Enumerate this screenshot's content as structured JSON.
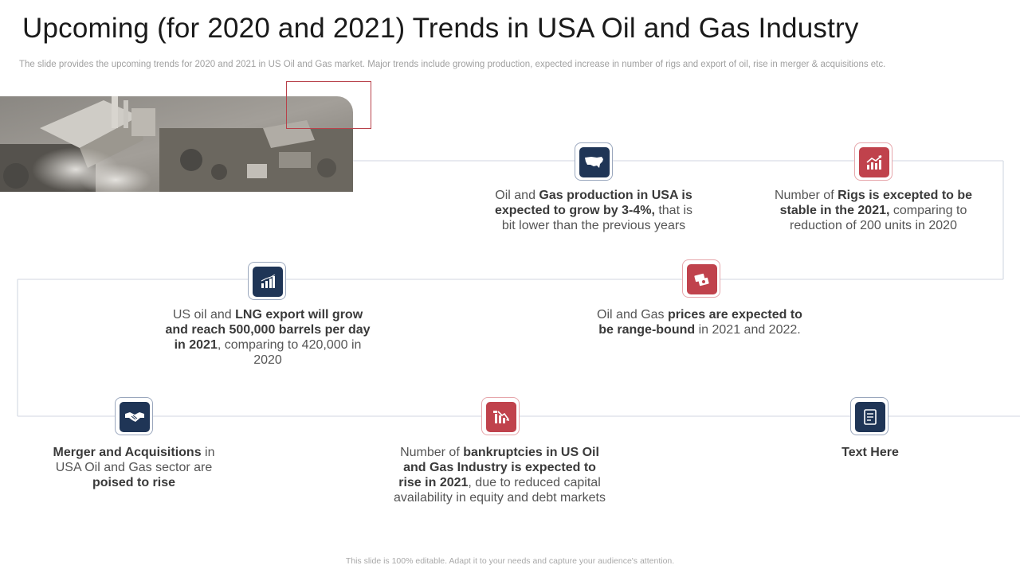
{
  "title": "Upcoming (for 2020 and 2021) Trends in USA Oil and Gas Industry",
  "subtitle": "The slide provides the upcoming trends for 2020 and 2021 in US Oil and Gas market. Major trends include growing production, expected increase in number of rigs and export of oil, rise in merger & acquisitions etc.",
  "footer": "This slide is 100% editable. Adapt it to your needs and capture your audience's attention.",
  "colors": {
    "navy": "#1f3556",
    "red": "#c0424c",
    "line": "#d9dee6"
  },
  "trends": [
    {
      "id": "production",
      "icon": "usa-map-icon",
      "style": "navy",
      "parts": [
        [
          "Oil and ",
          false
        ],
        [
          "Gas production in USA is expected to grow by 3-4%,",
          true
        ],
        [
          " that is bit lower than the previous years",
          false
        ]
      ]
    },
    {
      "id": "rigs",
      "icon": "growth-chart-icon",
      "style": "red",
      "parts": [
        [
          "Number of ",
          false
        ],
        [
          "Rigs is excepted to be stable in the 2021,",
          true
        ],
        [
          " comparing to reduction of 200 units in 2020",
          false
        ]
      ]
    },
    {
      "id": "export",
      "icon": "bar-chart-icon",
      "style": "navy",
      "parts": [
        [
          "US oil and ",
          false
        ],
        [
          "LNG export will grow and reach 500,000 barrels per day in 2021",
          true
        ],
        [
          ", comparing to 420,000 in 2020",
          false
        ]
      ]
    },
    {
      "id": "prices",
      "icon": "money-icon",
      "style": "red",
      "parts": [
        [
          "Oil and Gas ",
          false
        ],
        [
          "prices are expected to be range-bound",
          true
        ],
        [
          " in 2021 and 2022.",
          false
        ]
      ]
    },
    {
      "id": "merger",
      "icon": "handshake-icon",
      "style": "navy",
      "parts": [
        [
          "Merger and Acquisitions",
          true
        ],
        [
          " in USA Oil and Gas sector are ",
          false
        ],
        [
          "poised to rise",
          true
        ]
      ]
    },
    {
      "id": "bankruptcy",
      "icon": "declining-chart-icon",
      "style": "red",
      "parts": [
        [
          "Number of ",
          false
        ],
        [
          "bankruptcies in US Oil and Gas Industry is expected to rise in 2021",
          true
        ],
        [
          ", due to reduced capital availability in equity and debt markets",
          false
        ]
      ]
    },
    {
      "id": "placeholder",
      "icon": "notepad-icon",
      "style": "navy",
      "parts": [
        [
          "Text Here",
          true
        ]
      ]
    }
  ]
}
